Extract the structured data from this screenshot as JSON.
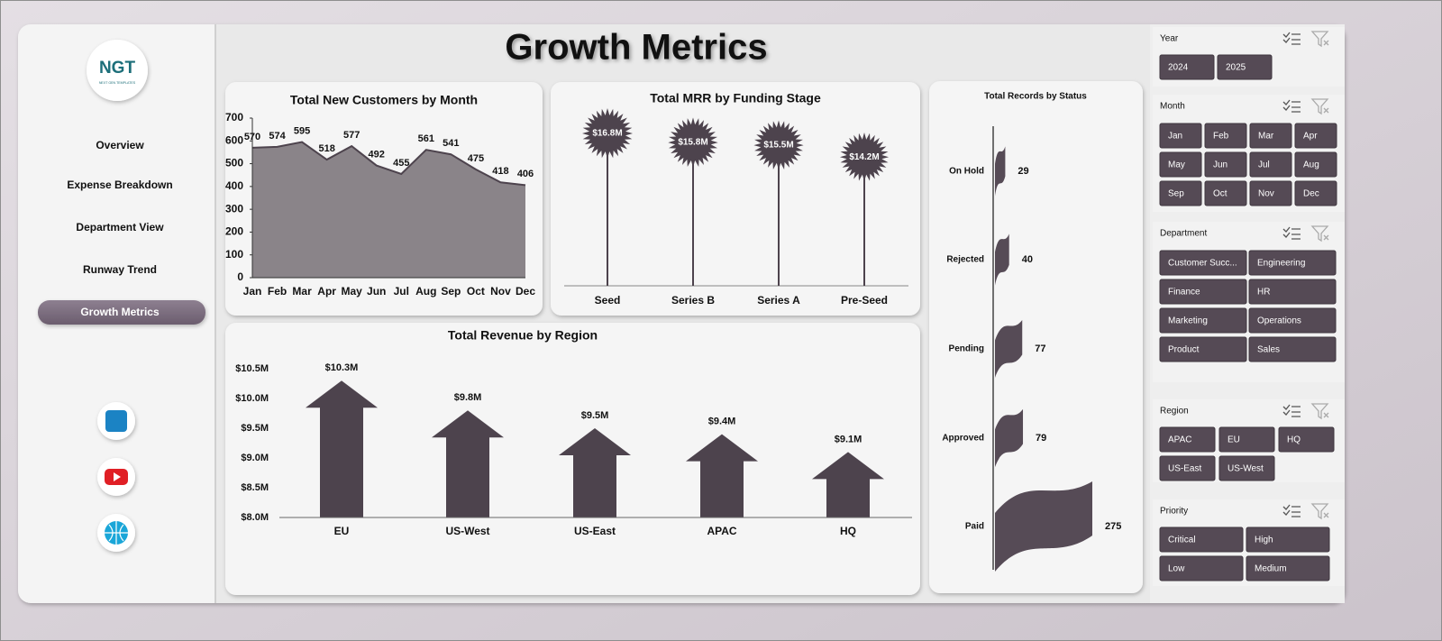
{
  "header": {
    "title": "Growth Metrics"
  },
  "logo": {
    "text": "NGT",
    "subtitle": "NEXT GEN TEMPLATES"
  },
  "nav": {
    "items": [
      "Overview",
      "Expense Breakdown",
      "Department View",
      "Runway Trend",
      "Growth Metrics"
    ],
    "active": 4
  },
  "chart_data": [
    {
      "type": "area",
      "title": "Total New Customers  by Month",
      "categories": [
        "Jan",
        "Feb",
        "Mar",
        "Apr",
        "May",
        "Jun",
        "Jul",
        "Aug",
        "Sep",
        "Oct",
        "Nov",
        "Dec"
      ],
      "values": [
        570,
        574,
        595,
        518,
        577,
        492,
        455,
        561,
        541,
        475,
        418,
        406
      ],
      "color": "#8a8489",
      "line_color": "#4d434d",
      "ylim": [
        0,
        700
      ],
      "yticks": [
        0,
        100,
        200,
        300,
        400,
        500,
        600,
        700
      ]
    },
    {
      "type": "lollipop",
      "title": "Total MRR by Funding Stage",
      "categories": [
        "Seed",
        "Series B",
        "Series A",
        "Pre-Seed"
      ],
      "values": [
        16.8,
        15.8,
        15.5,
        14.2
      ],
      "value_labels": [
        "$16.8M",
        "$15.8M",
        "$15.5M",
        "$14.2M"
      ],
      "color": "#4d434d"
    },
    {
      "type": "bar",
      "marker": "arrow",
      "title": "Total Revenue  by Region",
      "categories": [
        "EU",
        "US-West",
        "US-East",
        "APAC",
        "HQ"
      ],
      "values": [
        10300000,
        9800000,
        9500000,
        9400000,
        9100000
      ],
      "value_labels": [
        "$10.3M",
        "$9.8M",
        "$9.5M",
        "$9.4M",
        "$9.1M"
      ],
      "color": "#4d434d",
      "ylim": [
        8000000,
        10500000
      ],
      "yticks": [
        {
          "value": 8000000,
          "label": "$8.0M"
        },
        {
          "value": 8500000,
          "label": "$8.5M"
        },
        {
          "value": 9000000,
          "label": "$9.0M"
        },
        {
          "value": 9500000,
          "label": "$9.5M"
        },
        {
          "value": 10000000,
          "label": "$10.0M"
        },
        {
          "value": 10500000,
          "label": "$10.5M"
        }
      ]
    },
    {
      "type": "bar",
      "marker": "flag",
      "orientation": "horizontal",
      "title": "Total Records by Status",
      "categories": [
        "On Hold",
        "Rejected",
        "Pending",
        "Approved",
        "Paid"
      ],
      "values": [
        29,
        40,
        77,
        79,
        275
      ],
      "color": "#564b56"
    }
  ],
  "slicers": [
    {
      "title": "Year",
      "items": [
        "2024",
        "2025"
      ]
    },
    {
      "title": "Month",
      "items": [
        "Jan",
        "Feb",
        "Mar",
        "Apr",
        "May",
        "Jun",
        "Jul",
        "Aug",
        "Sep",
        "Oct",
        "Nov",
        "Dec"
      ]
    },
    {
      "title": "Department",
      "items": [
        "Customer Succ...",
        "Engineering",
        "Finance",
        "HR",
        "Marketing",
        "Operations",
        "Product",
        "Sales"
      ]
    },
    {
      "title": "Region",
      "items": [
        "APAC",
        "EU",
        "HQ",
        "US-East",
        "US-West"
      ]
    },
    {
      "title": "Priority",
      "items": [
        "Critical",
        "High",
        "Low",
        "Medium"
      ]
    }
  ]
}
